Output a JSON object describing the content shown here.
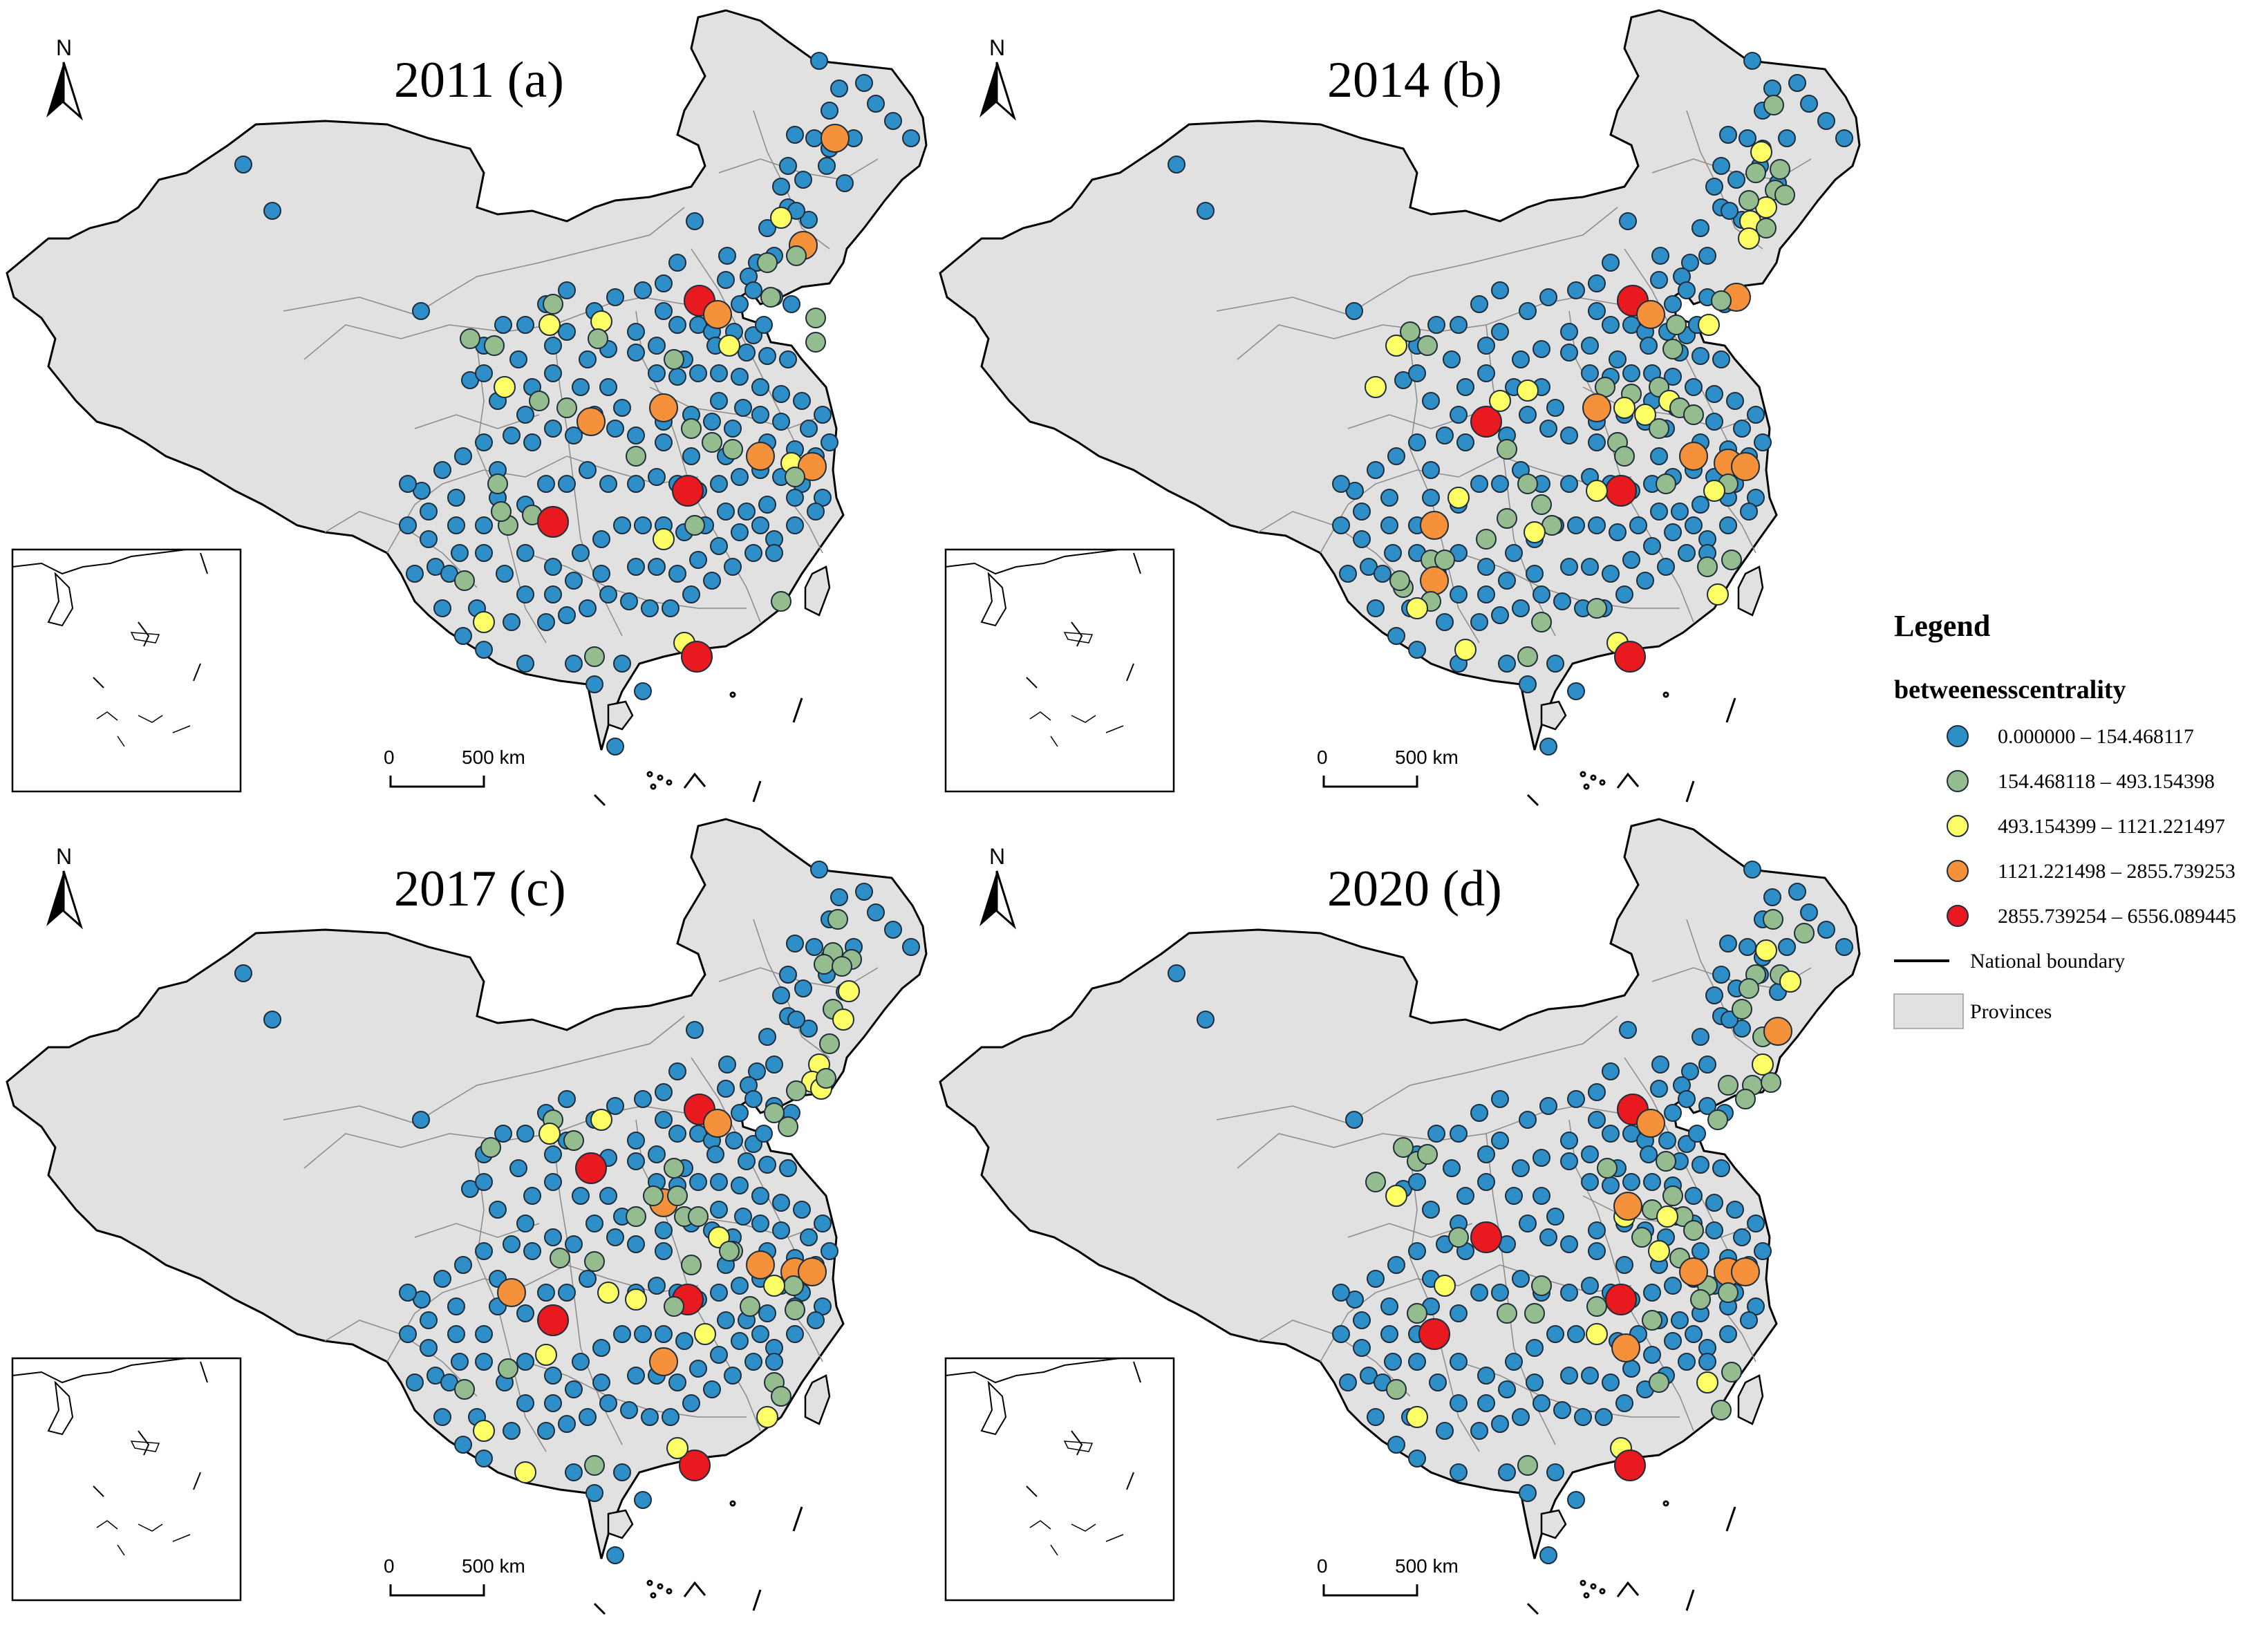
{
  "colors": {
    "class_fill": [
      "#2e8fc8",
      "#95bc8e",
      "#ffff66",
      "#f4913a",
      "#e8191f"
    ],
    "dot_stroke": "#1f2d3a",
    "province_fill": "#e1e1e1",
    "boundary": "#000000",
    "province_line": "#8a8a8a"
  },
  "panels": [
    {
      "title": "2011 (a)",
      "scale_zero": "0",
      "scale_label": "500 km",
      "north_label": "N"
    },
    {
      "title": "2014 (b)",
      "scale_zero": "0",
      "scale_label": "500 km",
      "north_label": "N"
    },
    {
      "title": "2017 (c)",
      "scale_zero": "0",
      "scale_label": "500 km",
      "north_label": "N"
    },
    {
      "title": "2020 (d)",
      "scale_zero": "0",
      "scale_label": "500 km",
      "north_label": "N"
    }
  ],
  "legend": {
    "heading": "Legend",
    "field": "betweenesscentrality",
    "classes": [
      {
        "label": "0.000000 – 154.468117"
      },
      {
        "label": "154.468118 – 493.154398"
      },
      {
        "label": "493.154399 – 1121.221497"
      },
      {
        "label": "1121.221498 – 2855.739253"
      },
      {
        "label": "2855.739254 – 6556.089445"
      }
    ],
    "boundary_label": "National boundary",
    "provinces_label": "Provinces"
  }
}
